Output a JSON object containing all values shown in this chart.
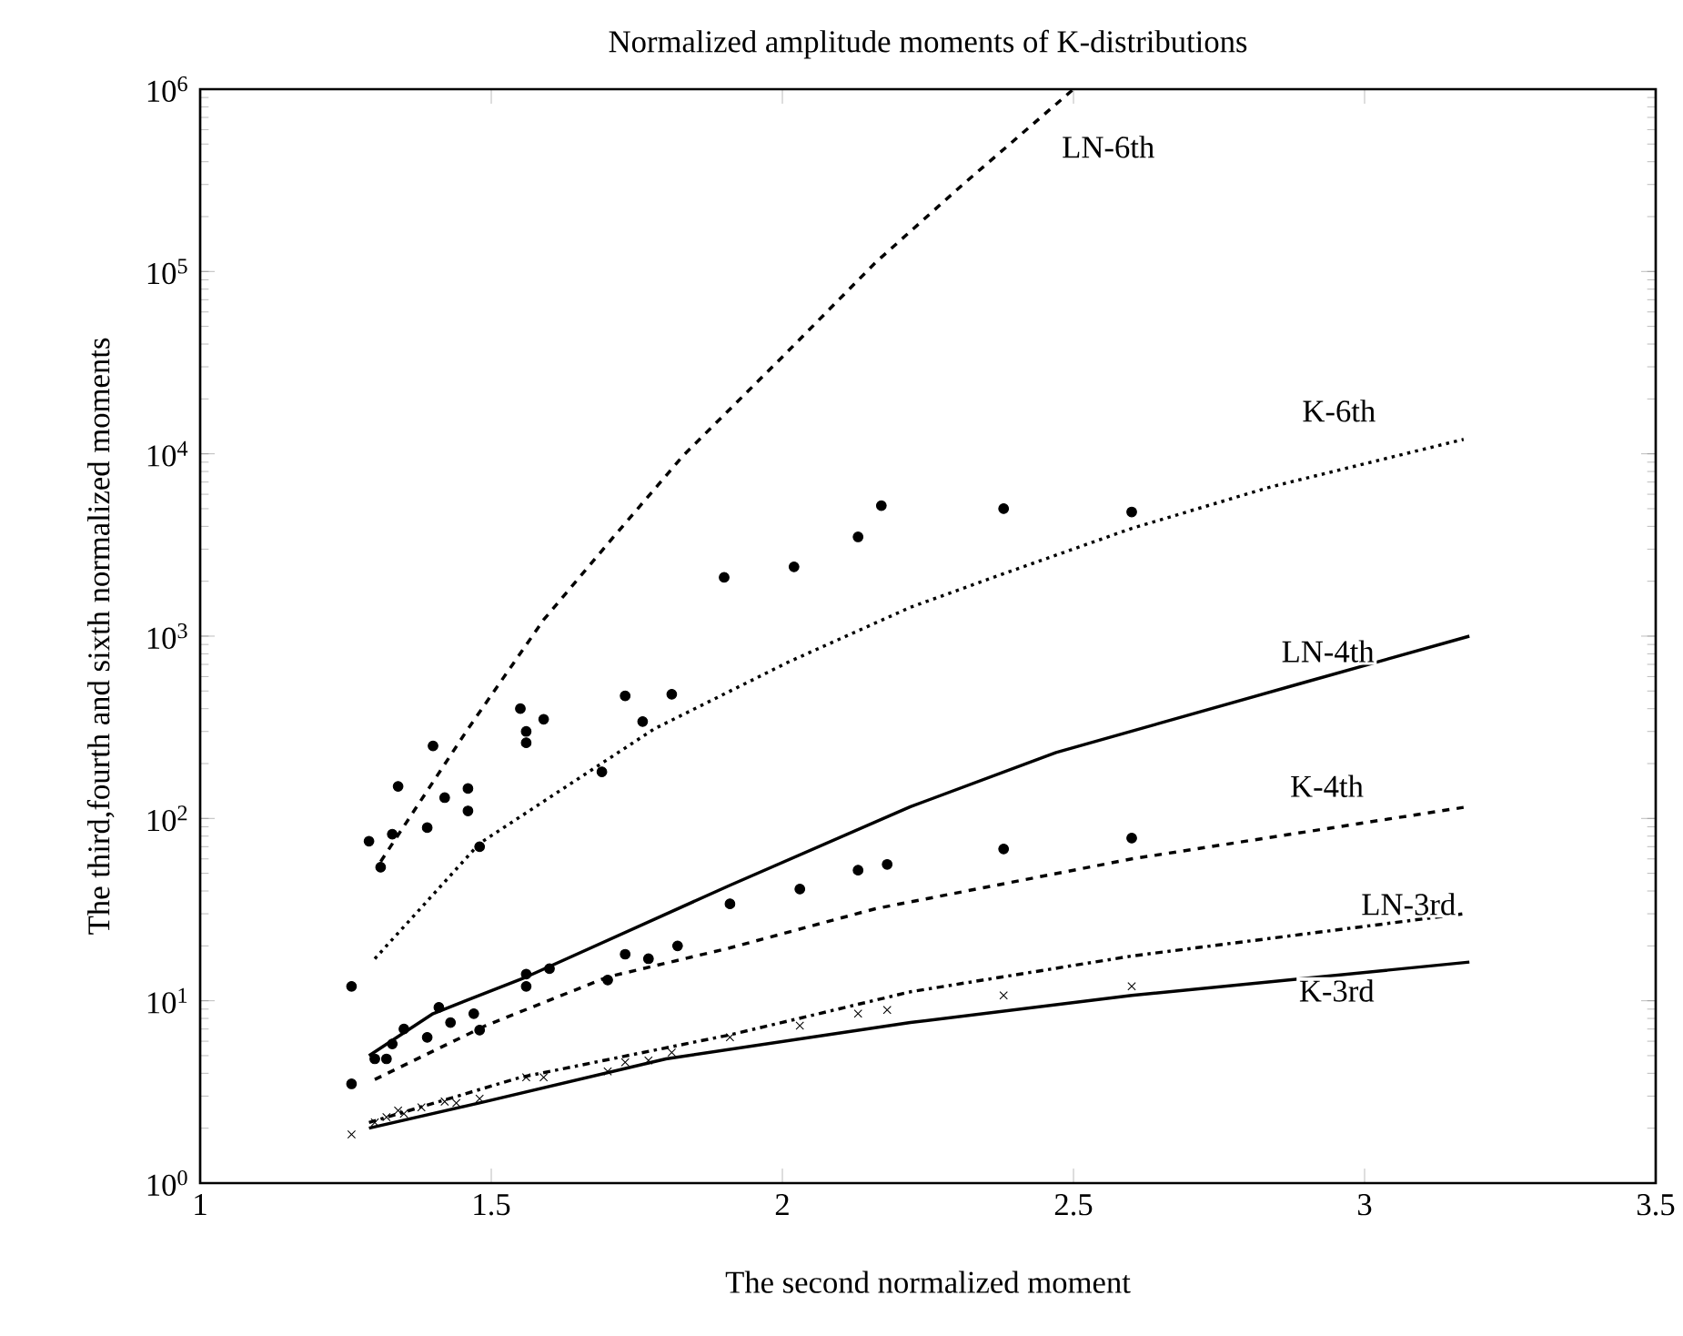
{
  "chart_data": {
    "type": "line",
    "title": "Normalized amplitude moments of K-distributions",
    "xlabel": "The second normalized moment",
    "ylabel": "The third,fourth and sixth normalized moments",
    "log": "y",
    "xlim": [
      1,
      3.5
    ],
    "ylim": [
      1,
      1000000
    ],
    "xticks": [
      1,
      1.5,
      2,
      2.5,
      3,
      3.5
    ],
    "yticks": [
      {
        "value": 1,
        "label": "10$^{0}$"
      },
      {
        "value": 10,
        "label": "10$^{1}$"
      },
      {
        "value": 100,
        "label": "10$^{2}$"
      },
      {
        "value": 1000,
        "label": "10$^{3}$"
      },
      {
        "value": 10000,
        "label": "10$^{4}$"
      },
      {
        "value": 100000,
        "label": "10$^{5}$"
      },
      {
        "value": 1000000,
        "label": "10$^{6}$"
      }
    ],
    "series": [
      {
        "type": "scatter",
        "marker": "circle",
        "color": "#000000",
        "x": [
          1.26,
          1.29,
          1.31,
          1.33,
          1.34,
          1.39,
          1.4,
          1.42,
          1.46,
          1.46,
          1.48,
          1.55,
          1.56,
          1.56,
          1.59,
          1.69,
          1.73,
          1.76,
          1.81,
          1.9,
          2.02,
          2.13,
          2.17,
          2.38,
          2.6
        ],
        "values": [
          12,
          75,
          54,
          82,
          150,
          89,
          250,
          130,
          146,
          110,
          70,
          400,
          300,
          260,
          350,
          180,
          470,
          340,
          480,
          2100,
          2400,
          3500,
          5200,
          5000,
          4800
        ]
      },
      {
        "type": "scatter",
        "marker": "circle",
        "color": "#000000",
        "x": [
          1.26,
          1.3,
          1.32,
          1.33,
          1.35,
          1.39,
          1.41,
          1.43,
          1.47,
          1.48,
          1.56,
          1.56,
          1.6,
          1.7,
          1.73,
          1.77,
          1.82,
          1.91,
          2.03,
          2.13,
          2.18,
          2.38,
          2.6
        ],
        "values": [
          3.5,
          4.8,
          4.8,
          5.8,
          7.0,
          6.3,
          9.2,
          7.6,
          8.5,
          6.9,
          14,
          12,
          15,
          13,
          18,
          17,
          20,
          34,
          41,
          52,
          56,
          68,
          78
        ]
      },
      {
        "type": "scatter",
        "marker": "cross",
        "color": "#000000",
        "x": [
          1.26,
          1.3,
          1.32,
          1.34,
          1.35,
          1.38,
          1.42,
          1.44,
          1.48,
          1.56,
          1.59,
          1.7,
          1.73,
          1.77,
          1.81,
          1.91,
          2.03,
          2.13,
          2.18,
          2.38,
          2.6
        ],
        "values": [
          1.85,
          2.15,
          2.3,
          2.5,
          2.4,
          2.6,
          2.8,
          2.75,
          2.9,
          3.8,
          3.8,
          4.1,
          4.6,
          4.7,
          5.2,
          6.3,
          7.3,
          8.5,
          8.9,
          10.7,
          12
        ]
      },
      {
        "name": "LN-6th",
        "line_style": "dashed",
        "color": "#000000",
        "x": [
          1.31,
          1.46,
          1.59,
          1.71,
          1.83,
          2.0,
          2.16,
          2.31,
          2.5
        ],
        "values": [
          58,
          310,
          1230,
          3500,
          9800,
          34000,
          112000,
          300000,
          1000000
        ]
      },
      {
        "name": "K-6th",
        "line_style": "dotted",
        "color": "#000000",
        "x": [
          1.3,
          1.48,
          1.78,
          2.01,
          2.22,
          2.38,
          2.6,
          2.84,
          3.17
        ],
        "values": [
          17,
          73,
          310,
          720,
          1440,
          2200,
          3900,
          6600,
          12000
        ]
      },
      {
        "name": "LN-4th",
        "line_style": "solid",
        "color": "#000000",
        "x": [
          1.29,
          1.4,
          1.56,
          1.91,
          2.22,
          2.47,
          2.89,
          3.18
        ],
        "values": [
          5.0,
          8.5,
          13.5,
          43,
          116,
          230,
          550,
          1000
        ]
      },
      {
        "name": "K-4th",
        "line_style": "dashed",
        "color": "#000000",
        "x": [
          1.3,
          1.49,
          1.7,
          1.91,
          2.16,
          2.6,
          3.17
        ],
        "values": [
          3.7,
          7.3,
          13.5,
          19.5,
          32,
          60,
          115
        ]
      },
      {
        "name": "LN-3rd",
        "line_style": "dashdot",
        "color": "#000000",
        "x": [
          1.29,
          1.55,
          1.91,
          2.22,
          2.6,
          3.17
        ],
        "values": [
          2.15,
          3.8,
          6.5,
          11.2,
          17.6,
          30
        ]
      },
      {
        "name": "K-3rd",
        "line_style": "solid",
        "color": "#000000",
        "x": [
          1.29,
          1.49,
          1.8,
          2.22,
          2.6,
          3.18
        ],
        "values": [
          2.0,
          2.8,
          4.8,
          7.6,
          10.7,
          16.3
        ]
      }
    ]
  }
}
